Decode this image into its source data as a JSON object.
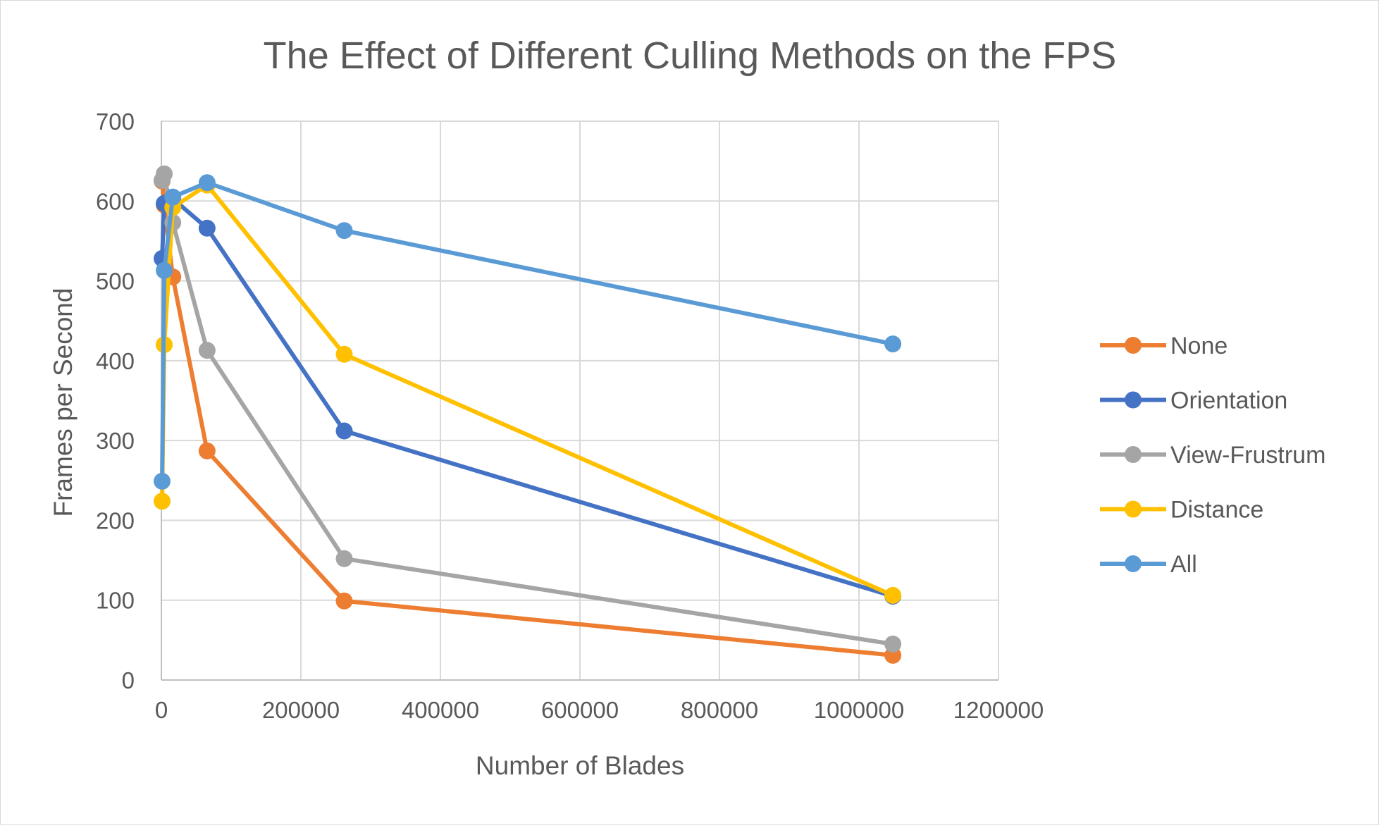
{
  "chart_data": {
    "type": "line",
    "title": "The Effect of Different Culling Methods on the FPS",
    "xlabel": "Number of Blades",
    "ylabel": "Frames per Second",
    "xlim": [
      0,
      1200000
    ],
    "ylim": [
      0,
      700
    ],
    "xticks": [
      0,
      200000,
      400000,
      600000,
      800000,
      1000000,
      1200000
    ],
    "yticks": [
      0,
      100,
      200,
      300,
      400,
      500,
      600,
      700
    ],
    "xtick_labels": [
      "0",
      "200000",
      "400000",
      "600000",
      "800000",
      "1000000",
      "1200000"
    ],
    "ytick_labels": [
      "0",
      "100",
      "200",
      "300",
      "400",
      "500",
      "600",
      "700"
    ],
    "grid": true,
    "legend_position": "right",
    "series": [
      {
        "name": "None",
        "color": "#ED7D31",
        "x": [
          1024,
          4096,
          16384,
          65536,
          262144,
          1048576
        ],
        "y": [
          625,
          595,
          505,
          287,
          99,
          31
        ]
      },
      {
        "name": "Orientation",
        "color": "#4472C4",
        "x": [
          1024,
          4096,
          16384,
          65536,
          262144,
          1048576
        ],
        "y": [
          528,
          597,
          603,
          566,
          312,
          105
        ]
      },
      {
        "name": "View-Frustrum",
        "color": "#A5A5A5",
        "x": [
          1024,
          4096,
          16384,
          65536,
          262144,
          1048576
        ],
        "y": [
          626,
          634,
          573,
          413,
          152,
          45
        ]
      },
      {
        "name": "Distance",
        "color": "#FFC000",
        "x": [
          1024,
          4096,
          16384,
          65536,
          262144,
          1048576
        ],
        "y": [
          224,
          420,
          592,
          620,
          408,
          106
        ]
      },
      {
        "name": "All",
        "color": "#5B9BD5",
        "x": [
          1024,
          4096,
          16384,
          65536,
          262144,
          1048576
        ],
        "y": [
          249,
          513,
          605,
          623,
          563,
          421
        ]
      }
    ]
  }
}
